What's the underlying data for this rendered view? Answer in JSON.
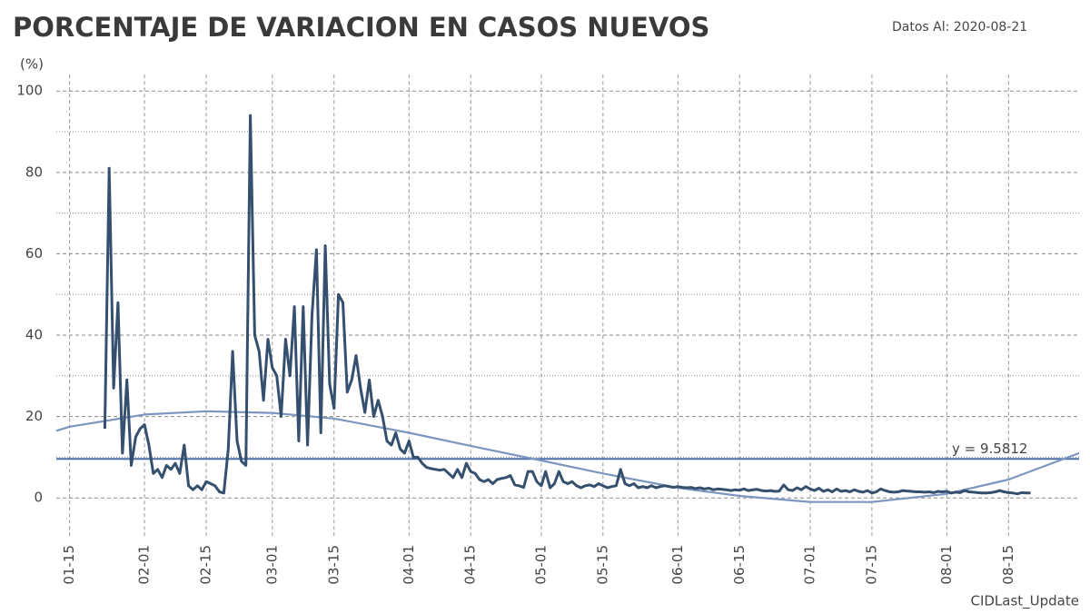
{
  "chart_data": {
    "type": "line",
    "title": "PORCENTAJE DE VARIACION EN CASOS NUEVOS",
    "subtitle": "Datos Al: 2020-08-21",
    "y_label": "(%)",
    "footer": "CIDLast_Update",
    "xlim": [
      "01-12",
      "08-31"
    ],
    "xticks": [
      "01-15",
      "02-01",
      "02-15",
      "03-01",
      "03-15",
      "04-01",
      "04-15",
      "05-01",
      "05-15",
      "06-01",
      "06-15",
      "07-01",
      "07-15",
      "08-01",
      "08-15"
    ],
    "ylim": [
      -10,
      104
    ],
    "yticks": [
      0,
      20,
      40,
      60,
      80,
      100
    ],
    "minor_yticks": [
      10,
      30,
      50,
      70,
      90
    ],
    "grid": true,
    "mean_line": {
      "value": 9.5812,
      "label": "y = 9.5812",
      "color": "#4a6fa5"
    },
    "series": [
      {
        "color": "#34506e",
        "x": [
          "01-23",
          "01-24",
          "01-25",
          "01-26",
          "01-27",
          "01-28",
          "01-29",
          "01-30",
          "01-31",
          "02-01",
          "02-02",
          "02-03",
          "02-04",
          "02-05",
          "02-06",
          "02-07",
          "02-08",
          "02-09",
          "02-10",
          "02-11",
          "02-12",
          "02-13",
          "02-14",
          "02-15",
          "02-16",
          "02-17",
          "02-18",
          "02-19",
          "02-20",
          "02-21",
          "02-22",
          "02-23",
          "02-24",
          "02-25",
          "02-26",
          "02-27",
          "02-28",
          "02-29",
          "03-01",
          "03-02",
          "03-03",
          "03-04",
          "03-05",
          "03-06",
          "03-07",
          "03-08",
          "03-09",
          "03-10",
          "03-11",
          "03-12",
          "03-13",
          "03-14",
          "03-15",
          "03-16",
          "03-17",
          "03-18",
          "03-19",
          "03-20",
          "03-21",
          "03-22",
          "03-23",
          "03-24",
          "03-25",
          "03-26",
          "03-27",
          "03-28",
          "03-29",
          "03-30",
          "03-31",
          "04-01",
          "04-02",
          "04-03",
          "04-04",
          "04-05",
          "04-06",
          "04-07",
          "04-08",
          "04-09",
          "04-10",
          "04-11",
          "04-12",
          "04-13",
          "04-14",
          "04-15",
          "04-16",
          "04-17",
          "04-18",
          "04-19",
          "04-20",
          "04-21",
          "04-22",
          "04-23",
          "04-24",
          "04-25",
          "04-26",
          "04-27",
          "04-28",
          "04-29",
          "04-30",
          "05-01",
          "05-02",
          "05-03",
          "05-04",
          "05-05",
          "05-06",
          "05-07",
          "05-08",
          "05-09",
          "05-10",
          "05-11",
          "05-12",
          "05-13",
          "05-14",
          "05-15",
          "05-16",
          "05-17",
          "05-18",
          "05-19",
          "05-20",
          "05-21",
          "05-22",
          "05-23",
          "05-24",
          "05-25",
          "05-26",
          "05-27",
          "05-28",
          "05-29",
          "05-30",
          "05-31",
          "06-01",
          "06-02",
          "06-03",
          "06-04",
          "06-05",
          "06-06",
          "06-07",
          "06-08",
          "06-09",
          "06-10",
          "06-11",
          "06-12",
          "06-13",
          "06-14",
          "06-15",
          "06-16",
          "06-17",
          "06-18",
          "06-19",
          "06-20",
          "06-21",
          "06-22",
          "06-23",
          "06-24",
          "06-25",
          "06-26",
          "06-27",
          "06-28",
          "06-29",
          "06-30",
          "07-01",
          "07-02",
          "07-03",
          "07-04",
          "07-05",
          "07-06",
          "07-07",
          "07-08",
          "07-09",
          "07-10",
          "07-11",
          "07-12",
          "07-13",
          "07-14",
          "07-15",
          "07-16",
          "07-17",
          "07-18",
          "07-19",
          "07-20",
          "07-21",
          "07-22",
          "07-23",
          "07-24",
          "07-25",
          "07-26",
          "07-27",
          "07-28",
          "07-29",
          "07-30",
          "07-31",
          "08-01",
          "08-02",
          "08-03",
          "08-04",
          "08-05",
          "08-06",
          "08-07",
          "08-08",
          "08-09",
          "08-10",
          "08-11",
          "08-12",
          "08-13",
          "08-14",
          "08-15",
          "08-16",
          "08-17",
          "08-18",
          "08-19",
          "08-20"
        ],
        "values": [
          17,
          81,
          27,
          48,
          11,
          29,
          8,
          15,
          17,
          18,
          13,
          6,
          7,
          5,
          8,
          7,
          8.5,
          6,
          13,
          3,
          2,
          3,
          2,
          4,
          3.5,
          3,
          1.5,
          1.2,
          12,
          36,
          14,
          9,
          8,
          94,
          40,
          36,
          24,
          39,
          32,
          30,
          20,
          39,
          30,
          47,
          14,
          47,
          13,
          45,
          61,
          16,
          62,
          28,
          22,
          50,
          48,
          26,
          29,
          35,
          27,
          21,
          29,
          20,
          24,
          20,
          14,
          13,
          16,
          12,
          11,
          14,
          10,
          10,
          8.5,
          7.5,
          7.2,
          7,
          6.8,
          7,
          6,
          5,
          7,
          5,
          8.5,
          6.5,
          6,
          4.5,
          4,
          4.5,
          3.5,
          4.5,
          4.8,
          5,
          5.5,
          3.2,
          3,
          2.6,
          6.5,
          6.5,
          4,
          3,
          6.5,
          2.5,
          3.5,
          6.5,
          4,
          3.5,
          4,
          3,
          2.5,
          3,
          3.2,
          2.8,
          3.5,
          3,
          2.5,
          2.8,
          3,
          7,
          3.5,
          3,
          3.5,
          2.5,
          2.8,
          2.5,
          3,
          2.5,
          2.8,
          3,
          2.8,
          2.6,
          2.8,
          2.6,
          2.5,
          2.6,
          2.3,
          2.5,
          2.2,
          2.4,
          2,
          2.2,
          2.1,
          2,
          1.8,
          2,
          1.9,
          2.2,
          1.8,
          2,
          2.1,
          1.8,
          1.7,
          1.8,
          1.6,
          1.7,
          3.2,
          2,
          1.8,
          2.5,
          2,
          2.8,
          2.2,
          1.8,
          2.4,
          1.6,
          2,
          1.5,
          2.2,
          1.6,
          1.8,
          1.5,
          2,
          1.6,
          1.4,
          1.8,
          1.2,
          1.5,
          2.2,
          1.8,
          1.5,
          1.4,
          1.5,
          1.8,
          1.7,
          1.6,
          1.5,
          1.5,
          1.4,
          1.5,
          1.3,
          1.6,
          1.5,
          1.6,
          1.2,
          1.4,
          1.3,
          1.8,
          1.5,
          1.4,
          1.3,
          1.2,
          1.2,
          1.3,
          1.5,
          1.8,
          1.5,
          1.3,
          1.2,
          1.0,
          1.3,
          1.2,
          1.2
        ]
      },
      {
        "color": "#7b96bf",
        "x": [
          "01-12",
          "01-15",
          "02-01",
          "02-15",
          "03-01",
          "03-15",
          "04-01",
          "04-15",
          "05-01",
          "05-15",
          "06-01",
          "06-15",
          "07-01",
          "07-15",
          "08-01",
          "08-15",
          "08-31"
        ],
        "values": [
          16.5,
          17.5,
          20.5,
          21.3,
          20.9,
          19.5,
          16,
          12.8,
          9.2,
          6,
          2.5,
          0.5,
          -1,
          -1,
          1,
          4.5,
          11
        ]
      }
    ]
  }
}
